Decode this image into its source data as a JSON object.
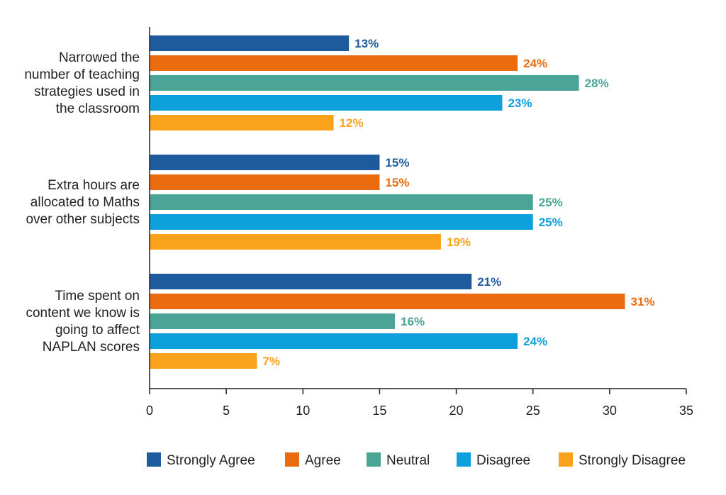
{
  "chart_data": {
    "type": "bar",
    "orientation": "horizontal",
    "title": "",
    "xlabel": "",
    "ylabel": "",
    "categories": [
      [
        "Narrowed the",
        "number of teaching",
        "strategies used in",
        "the classroom"
      ],
      [
        "Extra hours are",
        "allocated to Maths",
        "over other subjects"
      ],
      [
        "Time spent on",
        "content we know is",
        "going to affect",
        "NAPLAN scores"
      ]
    ],
    "series": [
      {
        "name": "Strongly Agree",
        "color": "#1e5b9e",
        "values": [
          13,
          15,
          21
        ],
        "labels": [
          "13%",
          "15%",
          "21%"
        ]
      },
      {
        "name": "Agree",
        "color": "#eb6b0f",
        "values": [
          24,
          15,
          31
        ],
        "labels": [
          "24%",
          "15%",
          "31%"
        ]
      },
      {
        "name": "Neutral",
        "color": "#4aa597",
        "values": [
          28,
          25,
          16
        ],
        "labels": [
          "28%",
          "25%",
          "16%"
        ]
      },
      {
        "name": "Disagree",
        "color": "#0ea0dd",
        "values": [
          23,
          25,
          24
        ],
        "labels": [
          "23%",
          "25%",
          "24%"
        ]
      },
      {
        "name": "Strongly Disagree",
        "color": "#fba21b",
        "values": [
          12,
          19,
          7
        ],
        "labels": [
          "12%",
          "19%",
          "7%"
        ]
      }
    ],
    "xlim": [
      0,
      35
    ],
    "xticks": [
      0,
      5,
      10,
      15,
      20,
      25,
      30,
      35
    ],
    "grid": false,
    "legend_position": "bottom"
  }
}
